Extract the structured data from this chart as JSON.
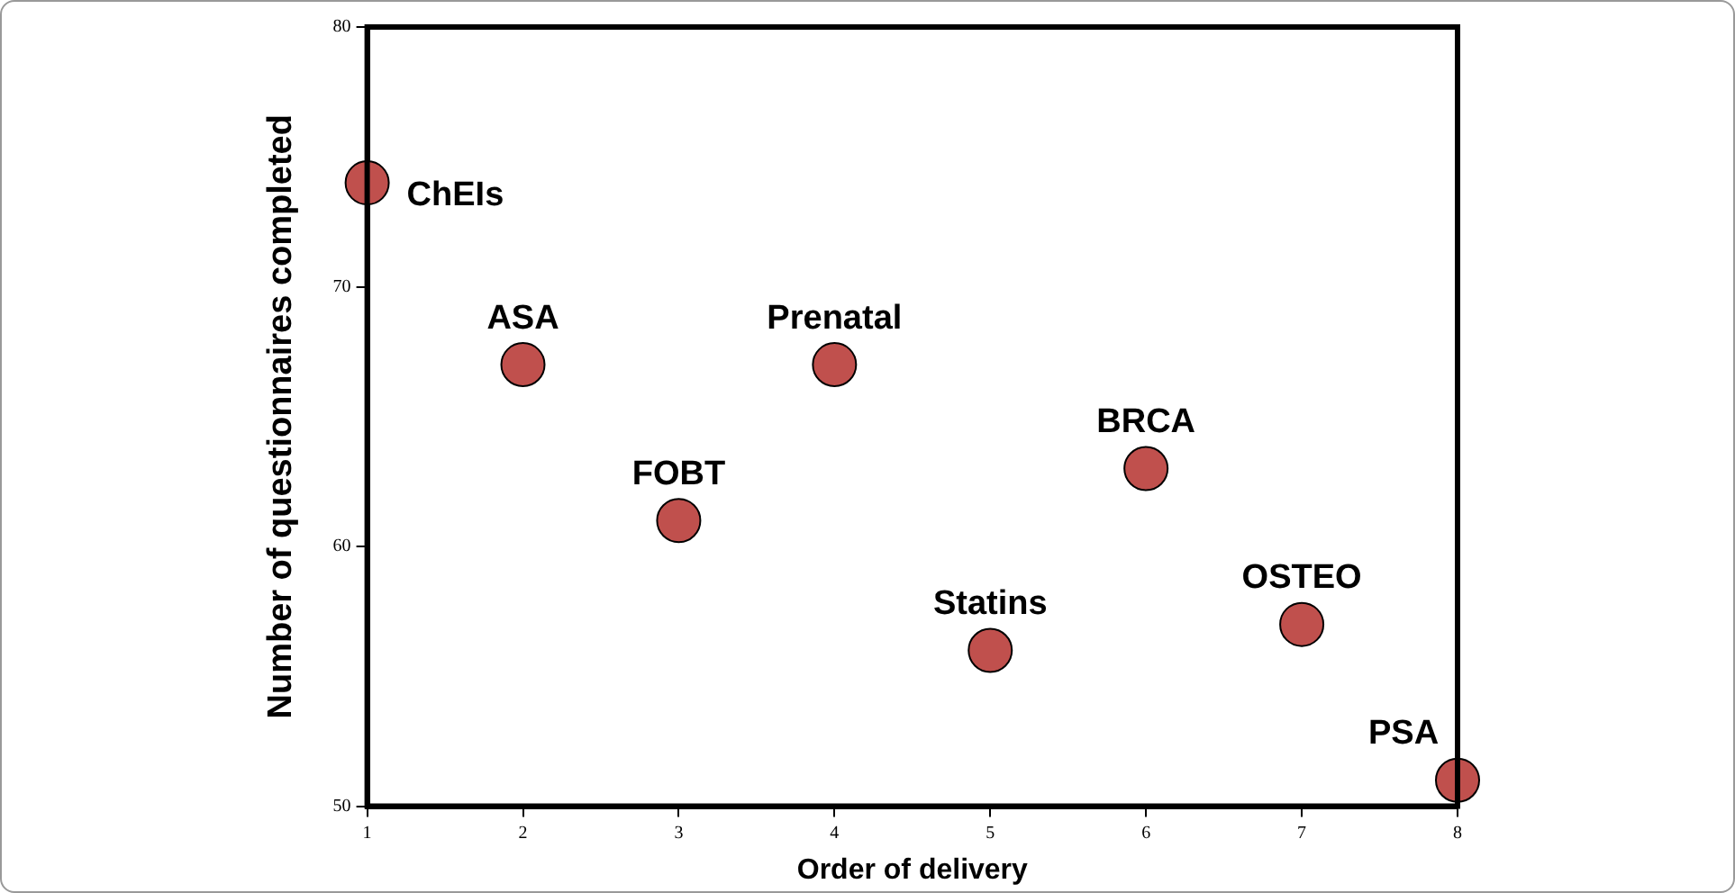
{
  "chart_data": {
    "type": "scatter",
    "xlabel": "Order of delivery",
    "ylabel": "Number of questionnaires completed",
    "x": [
      1,
      2,
      3,
      4,
      5,
      6,
      7,
      8
    ],
    "values": [
      74,
      67,
      61,
      67,
      56,
      63,
      57,
      51
    ],
    "color": "#c0504d",
    "marker": "circle",
    "grid": false,
    "legend": false,
    "xlim": [
      1,
      8
    ],
    "xticks": [
      1,
      2,
      3,
      4,
      5,
      6,
      7,
      8
    ],
    "ylim": [
      50,
      80
    ],
    "yticks": [
      50,
      60,
      70,
      80
    ],
    "annotations": [
      {
        "text": "ChEIs",
        "x": 1,
        "y": 74
      },
      {
        "text": "ASA",
        "x": 2,
        "y": 67
      },
      {
        "text": "FOBT",
        "x": 3,
        "y": 61
      },
      {
        "text": "Prenatal",
        "x": 4,
        "y": 67
      },
      {
        "text": "Statins",
        "x": 5,
        "y": 56
      },
      {
        "text": "BRCA",
        "x": 6,
        "y": 63
      },
      {
        "text": "OSTEO",
        "x": 7,
        "y": 57
      },
      {
        "text": "PSA",
        "x": 8,
        "y": 51
      }
    ]
  }
}
